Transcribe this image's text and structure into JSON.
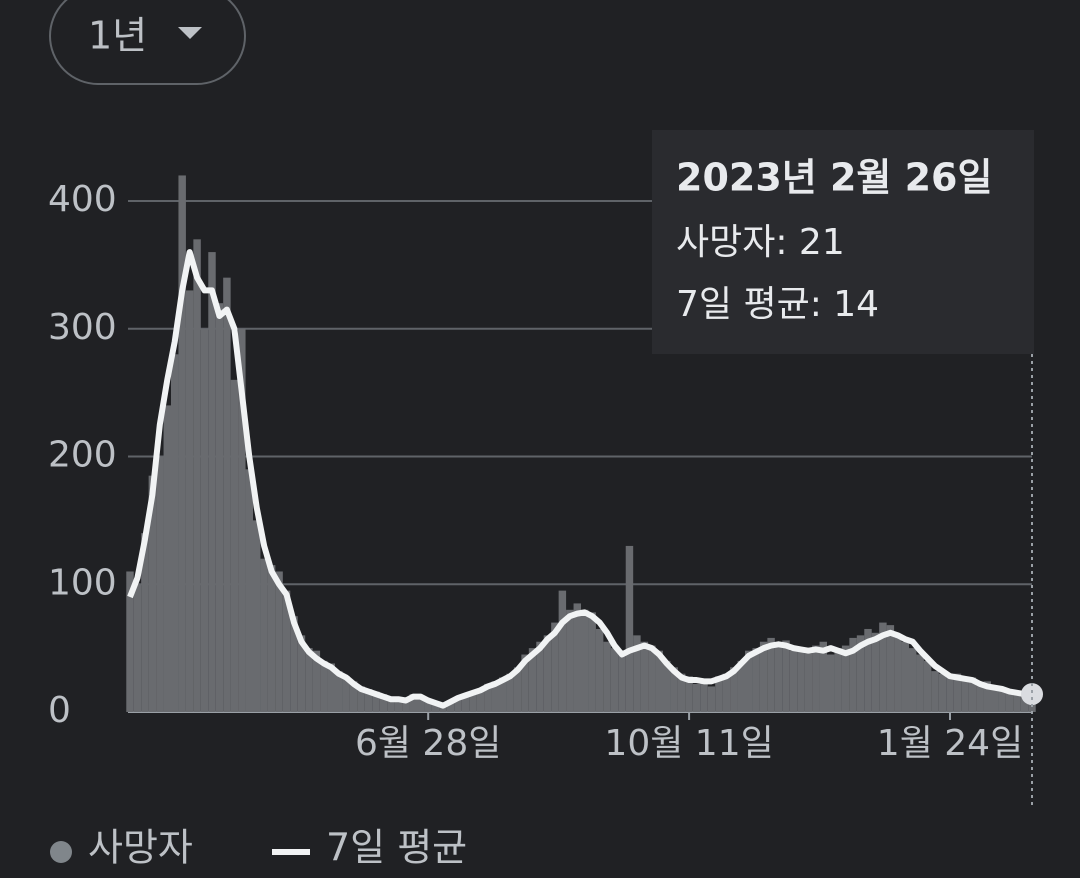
{
  "range_selector": "1년",
  "chart_data": {
    "type": "bar_line",
    "categories": [
      null,
      null,
      null,
      null,
      null,
      null,
      null,
      null,
      null,
      null,
      null,
      null,
      null,
      null,
      null,
      null,
      null,
      null,
      null,
      null,
      null,
      null,
      null,
      null,
      null,
      null,
      null,
      null,
      null,
      null,
      null,
      null,
      null,
      null,
      null,
      null,
      null,
      null,
      null,
      null,
      "6월 28일",
      null,
      null,
      null,
      null,
      null,
      null,
      null,
      null,
      null,
      null,
      null,
      null,
      null,
      null,
      null,
      null,
      null,
      null,
      null,
      null,
      null,
      null,
      null,
      null,
      null,
      null,
      null,
      null,
      null,
      null,
      null,
      null,
      null,
      null,
      "10월 11일",
      null,
      null,
      null,
      null,
      null,
      null,
      null,
      null,
      null,
      null,
      null,
      null,
      null,
      null,
      null,
      null,
      null,
      null,
      null,
      null,
      null,
      null,
      null,
      null,
      null,
      null,
      null,
      null,
      null,
      null,
      null,
      null,
      null,
      null,
      "1월 24일",
      null,
      null,
      null,
      null,
      null,
      null,
      null,
      null,
      null,
      null,
      null
    ],
    "series": [
      {
        "name": "사망자",
        "kind": "bar",
        "color": "#696b6f",
        "values": [
          110,
          100,
          140,
          185,
          200,
          240,
          280,
          420,
          330,
          370,
          300,
          360,
          320,
          340,
          260,
          300,
          190,
          150,
          120,
          115,
          110,
          95,
          75,
          60,
          50,
          48,
          40,
          38,
          32,
          28,
          24,
          20,
          18,
          16,
          14,
          12,
          11,
          10,
          14,
          13,
          10,
          8,
          6,
          9,
          12,
          14,
          16,
          18,
          22,
          24,
          27,
          30,
          35,
          45,
          50,
          55,
          60,
          70,
          95,
          80,
          85,
          80,
          78,
          65,
          55,
          50,
          45,
          130,
          60,
          55,
          52,
          48,
          40,
          35,
          30,
          28,
          22,
          24,
          20,
          28,
          30,
          35,
          40,
          48,
          50,
          55,
          58,
          52,
          56,
          48,
          50,
          46,
          52,
          55,
          45,
          50,
          52,
          58,
          60,
          65,
          62,
          70,
          68,
          60,
          55,
          50,
          45,
          40,
          32,
          30,
          28,
          30,
          25,
          27,
          22,
          24,
          20,
          18,
          16,
          15,
          12,
          21
        ]
      },
      {
        "name": "7일 평균",
        "kind": "line",
        "color": "#f1f3f4",
        "values": [
          90,
          105,
          135,
          170,
          225,
          260,
          290,
          330,
          360,
          340,
          330,
          330,
          310,
          315,
          300,
          250,
          200,
          160,
          130,
          110,
          100,
          92,
          70,
          55,
          47,
          42,
          38,
          35,
          30,
          27,
          22,
          18,
          16,
          14,
          12,
          10,
          10,
          9,
          12,
          12,
          9,
          7,
          5,
          8,
          11,
          13,
          15,
          17,
          20,
          22,
          25,
          28,
          33,
          40,
          45,
          50,
          57,
          62,
          70,
          75,
          77,
          78,
          75,
          70,
          62,
          52,
          45,
          48,
          50,
          52,
          50,
          45,
          38,
          32,
          27,
          25,
          25,
          24,
          24,
          26,
          28,
          32,
          38,
          44,
          47,
          50,
          52,
          53,
          52,
          50,
          49,
          48,
          49,
          48,
          50,
          48,
          46,
          48,
          52,
          55,
          57,
          60,
          62,
          60,
          57,
          55,
          48,
          42,
          36,
          32,
          28,
          27,
          26,
          25,
          22,
          20,
          19,
          18,
          16,
          15,
          14,
          14
        ]
      }
    ],
    "ylim": [
      0,
      460
    ],
    "yticks": [
      0,
      100,
      200,
      300,
      400
    ],
    "grid": true,
    "tooltip": {
      "title": "2023년 2월 26일",
      "rows": [
        "사망자: 21",
        "7일 평균: 14"
      ]
    }
  }
}
